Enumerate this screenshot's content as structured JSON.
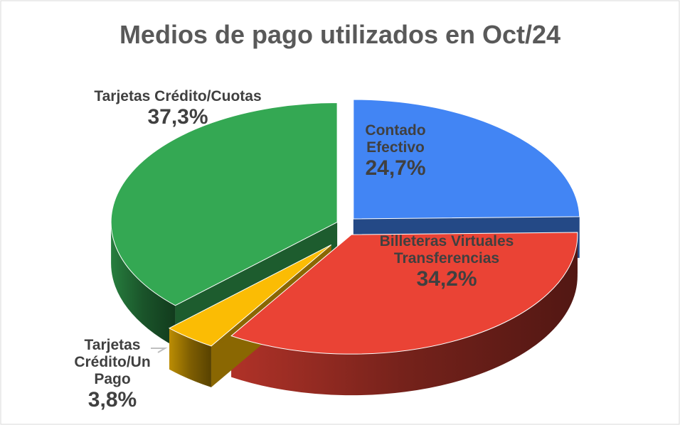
{
  "chart_data": {
    "type": "pie",
    "title": "Medios de pago utilizados en Oct/24",
    "categories": [
      "Contado Efectivo",
      "Billeteras Virtuales Transferencias",
      "Tarjetas Crédito/Un Pago",
      "Tarjetas Crédito/Cuotas"
    ],
    "values": [
      24.7,
      34.2,
      3.8,
      37.3
    ],
    "value_labels": [
      "24,7%",
      "34,2%",
      "3,8%",
      "37,3%"
    ],
    "colors": [
      "#4285f4",
      "#ea4335",
      "#fbbc04",
      "#34a853"
    ]
  }
}
